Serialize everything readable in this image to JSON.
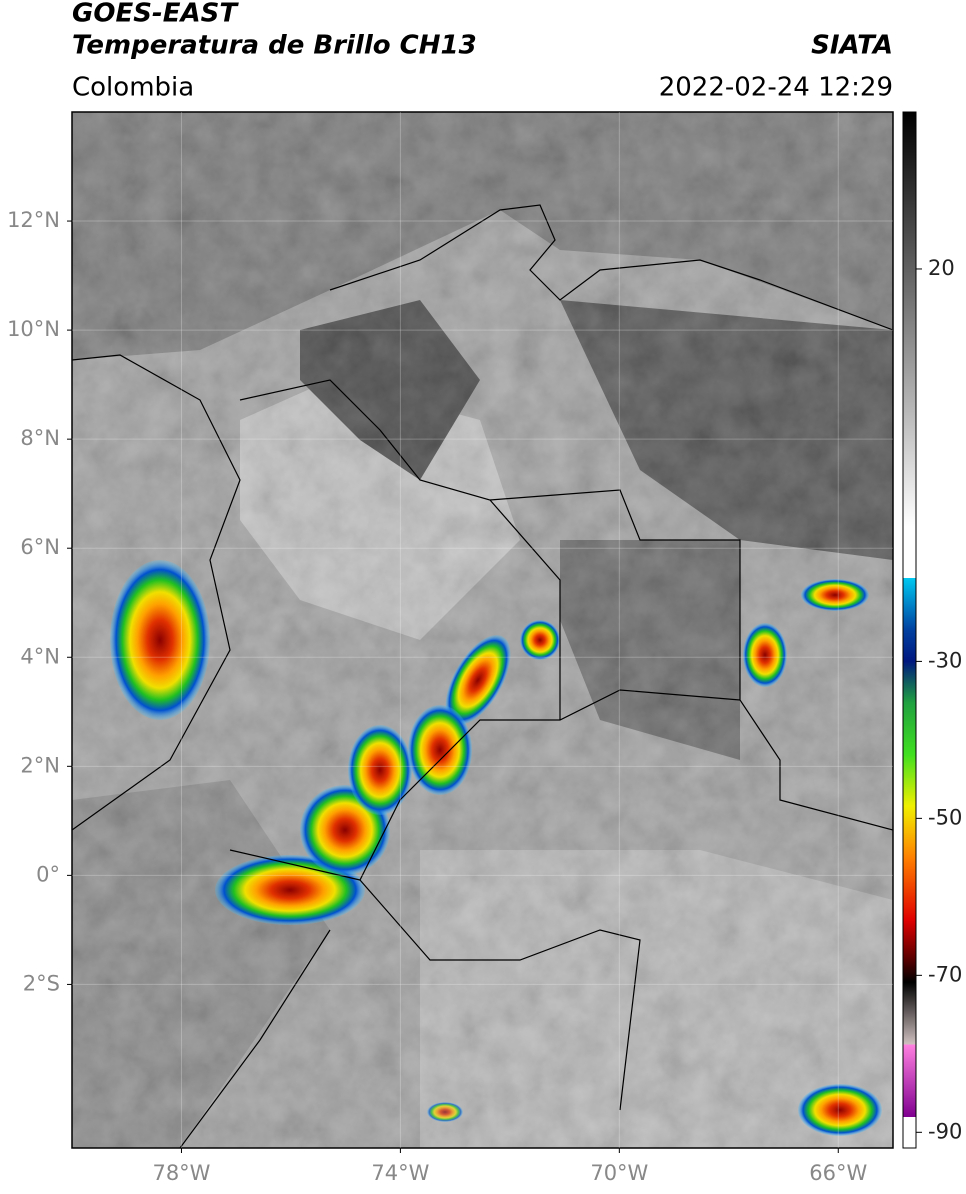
{
  "header": {
    "satellite": "GOES-EAST",
    "product": "Temperatura de Brillo CH13",
    "source": "SIATA",
    "region": "Colombia",
    "datetime": "2022-02-24 12:29"
  },
  "map": {
    "xlim": [
      -80,
      -65
    ],
    "ylim": [
      -5,
      14
    ],
    "xticks": [
      {
        "value": -78,
        "label": "78°W"
      },
      {
        "value": -74,
        "label": "74°W"
      },
      {
        "value": -70,
        "label": "70°W"
      },
      {
        "value": -66,
        "label": "66°W"
      }
    ],
    "yticks": [
      {
        "value": 12,
        "label": "12°N"
      },
      {
        "value": 10,
        "label": "10°N"
      },
      {
        "value": 8,
        "label": "8°N"
      },
      {
        "value": 6,
        "label": "6°N"
      },
      {
        "value": 4,
        "label": "4°N"
      },
      {
        "value": 2,
        "label": "2°N"
      },
      {
        "value": 0,
        "label": "0°"
      },
      {
        "value": -2,
        "label": "2°S"
      }
    ],
    "grid": true
  },
  "colorbar": {
    "clim": [
      -92,
      40
    ],
    "ticks": [
      20,
      -30,
      -50,
      -70,
      -90
    ]
  }
}
